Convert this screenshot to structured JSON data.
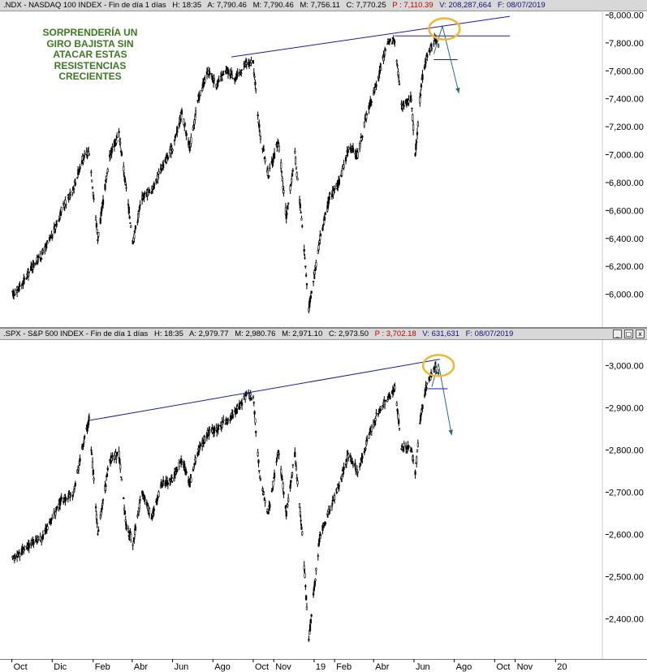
{
  "top_panel": {
    "header": {
      "symbol": ".NDX - NASDAQ 100 INDEX - Fin de día 1 días",
      "h": "H: 18:35",
      "a": "A: 7,790.46",
      "m": "M: 7,790.46",
      "m2": "M: 7,756.11",
      "c": "C: 7,770.25",
      "p": "P : 7,110.39",
      "v": "V: 208,287,664",
      "f": "F: 08/07/2019"
    },
    "annotation": [
      "SORPRENDERÍA UN",
      "GIRO BAJISTA SIN",
      "ATACAR ESTAS",
      "RESISTENCIAS",
      "CRECIENTES"
    ]
  },
  "bottom_panel": {
    "header": {
      "symbol": ".SPX - S&P 500 INDEX - Fin de día 1 días",
      "h": "H: 18:35",
      "a": "A: 2,979.77",
      "m": "M: 2,980.76",
      "m2": "M: 2,971.10",
      "c": "C: 2,973.50",
      "p": "P : 3,702.18",
      "v": "V: 631,631",
      "f": "F: 08/07/2019"
    }
  },
  "window_buttons": {
    "minimize": "_",
    "maximize": "□",
    "close": "x"
  },
  "colors": {
    "candles": "#000000",
    "trendline": "#1a1aa8",
    "arrow": "#2a6a7a",
    "highlight": "#f0b830",
    "annotation": "#3c7a22"
  },
  "chart_data": [
    {
      "type": "candlestick",
      "title": ".NDX - NASDAQ 100 INDEX",
      "yticks": [
        "8,000.00",
        "7,800.00",
        "7,600.00",
        "7,400.00",
        "7,200.00",
        "7,000.00",
        "6,800.00",
        "6,600.00",
        "6,400.00",
        "6,200.00",
        "6,000.00"
      ],
      "ylim": [
        5870,
        8020
      ],
      "series": [
        {
          "values": [
            [
              "2017-10-02",
              6000
            ],
            [
              "2017-10-16",
              6070
            ],
            [
              "2017-11-01",
              6200
            ],
            [
              "2017-11-15",
              6280
            ],
            [
              "2017-12-01",
              6420
            ],
            [
              "2017-12-15",
              6600
            ],
            [
              "2018-01-02",
              6760
            ],
            [
              "2018-01-15",
              6960
            ],
            [
              "2018-01-26",
              7020
            ],
            [
              "2018-02-08",
              6400
            ],
            [
              "2018-02-26",
              7000
            ],
            [
              "2018-03-12",
              7150
            ],
            [
              "2018-03-23",
              6750
            ],
            [
              "2018-04-02",
              6380
            ],
            [
              "2018-04-16",
              6700
            ],
            [
              "2018-05-01",
              6750
            ],
            [
              "2018-05-15",
              6900
            ],
            [
              "2018-06-01",
              7050
            ],
            [
              "2018-06-15",
              7300
            ],
            [
              "2018-06-27",
              7050
            ],
            [
              "2018-07-10",
              7400
            ],
            [
              "2018-07-25",
              7600
            ],
            [
              "2018-08-07",
              7500
            ],
            [
              "2018-08-22",
              7600
            ],
            [
              "2018-09-05",
              7550
            ],
            [
              "2018-09-20",
              7650
            ],
            [
              "2018-10-01",
              7650
            ],
            [
              "2018-10-11",
              7150
            ],
            [
              "2018-10-24",
              6850
            ],
            [
              "2018-11-08",
              7100
            ],
            [
              "2018-11-20",
              6550
            ],
            [
              "2018-12-03",
              7000
            ],
            [
              "2018-12-14",
              6500
            ],
            [
              "2018-12-24",
              5900
            ],
            [
              "2019-01-10",
              6400
            ],
            [
              "2019-01-25",
              6700
            ],
            [
              "2019-02-08",
              6800
            ],
            [
              "2019-02-22",
              7050
            ],
            [
              "2019-03-08",
              7000
            ],
            [
              "2019-03-22",
              7300
            ],
            [
              "2019-04-05",
              7500
            ],
            [
              "2019-04-22",
              7800
            ],
            [
              "2019-05-03",
              7830
            ],
            [
              "2019-05-13",
              7350
            ],
            [
              "2019-05-28",
              7400
            ],
            [
              "2019-06-03",
              7000
            ],
            [
              "2019-06-12",
              7500
            ],
            [
              "2019-06-20",
              7700
            ],
            [
              "2019-07-03",
              7830
            ],
            [
              "2019-07-08",
              7770
            ]
          ]
        }
      ],
      "trendlines": [
        {
          "from": [
            "2018-08-29",
            7700
          ],
          "to": [
            "2019-10-24",
            7990
          ]
        },
        {
          "from": [
            "2019-05-03",
            7850
          ],
          "to": [
            "2019-10-24",
            7850
          ]
        },
        {
          "from": [
            "2019-07-01",
            7680
          ],
          "to": [
            "2019-08-06",
            7680
          ]
        }
      ]
    },
    {
      "type": "candlestick",
      "title": ".SPX - S&P 500 INDEX",
      "yticks": [
        "3,000.00",
        "2,900.00",
        "2,800.00",
        "2,700.00",
        "2,600.00",
        "2,500.00",
        "2,400.00"
      ],
      "ylim": [
        2330,
        3045
      ],
      "series": [
        {
          "values": [
            [
              "2017-10-02",
              2540
            ],
            [
              "2017-10-16",
              2560
            ],
            [
              "2017-11-01",
              2580
            ],
            [
              "2017-11-15",
              2590
            ],
            [
              "2017-12-01",
              2640
            ],
            [
              "2017-12-15",
              2680
            ],
            [
              "2018-01-02",
              2700
            ],
            [
              "2018-01-15",
              2800
            ],
            [
              "2018-01-26",
              2870
            ],
            [
              "2018-02-08",
              2600
            ],
            [
              "2018-02-26",
              2780
            ],
            [
              "2018-03-12",
              2790
            ],
            [
              "2018-03-23",
              2620
            ],
            [
              "2018-04-02",
              2580
            ],
            [
              "2018-04-16",
              2700
            ],
            [
              "2018-05-01",
              2640
            ],
            [
              "2018-05-15",
              2720
            ],
            [
              "2018-06-01",
              2730
            ],
            [
              "2018-06-15",
              2780
            ],
            [
              "2018-06-27",
              2720
            ],
            [
              "2018-07-10",
              2800
            ],
            [
              "2018-07-25",
              2840
            ],
            [
              "2018-08-07",
              2850
            ],
            [
              "2018-08-22",
              2870
            ],
            [
              "2018-09-05",
              2890
            ],
            [
              "2018-09-20",
              2930
            ],
            [
              "2018-10-01",
              2925
            ],
            [
              "2018-10-11",
              2730
            ],
            [
              "2018-10-24",
              2650
            ],
            [
              "2018-11-08",
              2800
            ],
            [
              "2018-11-20",
              2650
            ],
            [
              "2018-12-03",
              2790
            ],
            [
              "2018-12-14",
              2600
            ],
            [
              "2018-12-24",
              2350
            ],
            [
              "2019-01-10",
              2600
            ],
            [
              "2019-01-25",
              2660
            ],
            [
              "2019-02-08",
              2720
            ],
            [
              "2019-02-22",
              2790
            ],
            [
              "2019-03-08",
              2750
            ],
            [
              "2019-03-22",
              2820
            ],
            [
              "2019-04-05",
              2880
            ],
            [
              "2019-04-22",
              2920
            ],
            [
              "2019-05-03",
              2945
            ],
            [
              "2019-05-13",
              2810
            ],
            [
              "2019-05-28",
              2800
            ],
            [
              "2019-06-03",
              2745
            ],
            [
              "2019-06-12",
              2890
            ],
            [
              "2019-06-20",
              2955
            ],
            [
              "2019-07-03",
              2995
            ],
            [
              "2019-07-08",
              2975
            ]
          ]
        }
      ],
      "trendlines": [
        {
          "from": [
            "2018-01-26",
            2870
          ],
          "to": [
            "2019-07-10",
            3015
          ]
        },
        {
          "from": [
            "2019-06-20",
            2945
          ],
          "to": [
            "2019-07-22",
            2945
          ]
        }
      ]
    }
  ],
  "x_axis": {
    "labels": [
      "Oct",
      "Dic",
      "Feb",
      "Abr",
      "Jun",
      "Ago",
      "Oct",
      "Nov",
      "19",
      "Feb",
      "Abr",
      "Jun",
      "Ago",
      "Oct",
      "Nov",
      "20"
    ]
  }
}
